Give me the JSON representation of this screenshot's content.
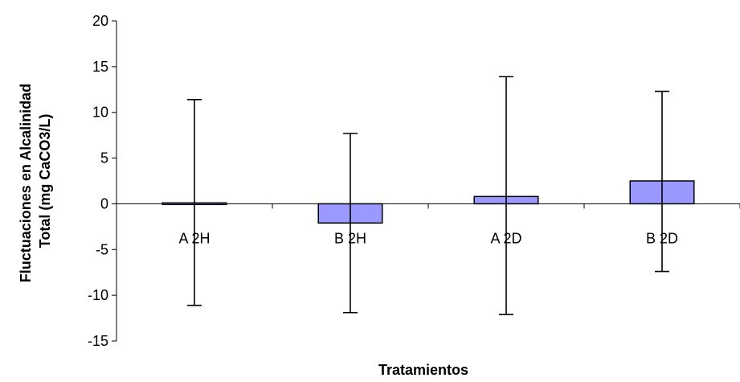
{
  "chart_data": {
    "type": "bar",
    "title": "",
    "xlabel": "Tratamientos",
    "ylabel_lines": [
      "Fluctuaciones en Alcalinidad",
      "Total (mg CaCO3/L)"
    ],
    "categories": [
      "A 2H",
      "B 2H",
      "A 2D",
      "B 2D"
    ],
    "values": [
      0.1,
      -2.1,
      0.8,
      2.5
    ],
    "error_upper": [
      11.4,
      7.7,
      13.9,
      12.3
    ],
    "error_lower": [
      -11.1,
      -11.9,
      -12.1,
      -7.4
    ],
    "ylim": [
      -15,
      20
    ],
    "yticks": [
      -15,
      -10,
      -5,
      0,
      5,
      10,
      15,
      20
    ],
    "ytick_labels": [
      "-15",
      "-10",
      "-5",
      "0",
      "5",
      "10",
      "15",
      "20"
    ],
    "grid": false,
    "legend": "none",
    "bar_color": "#9999ff"
  }
}
